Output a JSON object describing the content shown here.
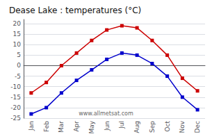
{
  "chart_data": {
    "type": "line",
    "title": "Dease Lake : temperatures (°C)",
    "categories": [
      "Jan",
      "Feb",
      "Mar",
      "Apr",
      "May",
      "Jun",
      "Jul",
      "Aug",
      "Sep",
      "Oct",
      "Nov",
      "Dec"
    ],
    "series": [
      {
        "color": "#cc0000",
        "marker": "square",
        "values": [
          -13,
          -8,
          0,
          6,
          12,
          17,
          19,
          18,
          12,
          5,
          -6,
          -12
        ]
      },
      {
        "color": "#0000cc",
        "marker": "square",
        "values": [
          -23,
          -20,
          -13,
          -7,
          -2,
          3,
          6,
          5,
          1,
          -5,
          -15,
          -21
        ]
      }
    ],
    "ylim": [
      -25,
      22
    ],
    "yticks": [
      -25,
      -20,
      -15,
      -10,
      -5,
      0,
      5,
      10,
      15,
      20
    ],
    "grid": true,
    "annotations": [
      "www.allmetsat.com"
    ]
  }
}
